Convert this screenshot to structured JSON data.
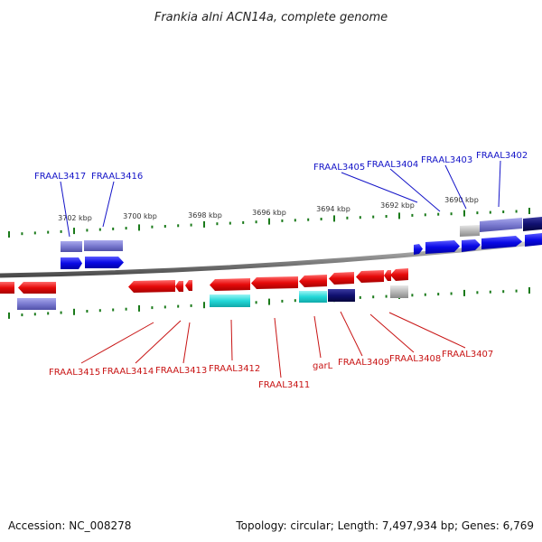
{
  "title": "Frankia alni ACN14a, complete genome",
  "footer": {
    "accession": "Accession: NC_008278",
    "summary": "Topology: circular; Length: 7,497,934 bp; Genes: 6,769"
  },
  "scale": {
    "ticks": [
      "3702 kbp",
      "3700 kbp",
      "3698 kbp",
      "3696 kbp",
      "3694 kbp",
      "3692 kbp",
      "3690 kbp"
    ]
  },
  "colors": {
    "forward_cds": "#0a0ae6",
    "reverse_cds": "#e60a0a",
    "rna": "#8080d0",
    "cyan_feature": "#22d8d8",
    "navy_feature": "#101070",
    "grey_feature": "#b0b0b0",
    "backbone": "#8a8a8a",
    "ticks": "#1a7a1a",
    "forward_label": "#1414c8",
    "reverse_label": "#c81414"
  },
  "genes": {
    "forward": [
      "FRAAL3417",
      "FRAAL3416",
      "FRAAL3405",
      "FRAAL3404",
      "FRAAL3403",
      "FRAAL3402"
    ],
    "reverse": [
      "FRAAL3415",
      "FRAAL3414",
      "FRAAL3413",
      "FRAAL3412",
      "FRAAL3411",
      "garL",
      "FRAAL3409",
      "FRAAL3408",
      "FRAAL3407"
    ]
  }
}
